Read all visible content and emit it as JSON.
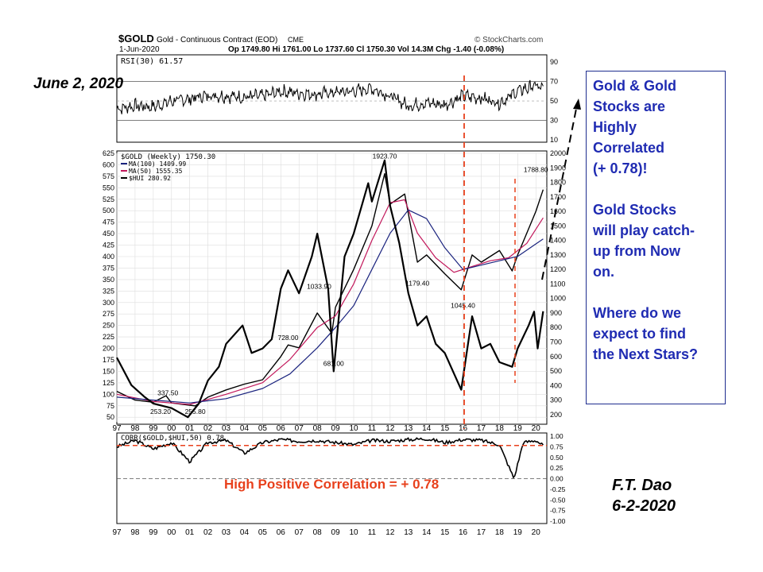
{
  "header": {
    "symbol": "$GOLD",
    "name": "Gold - Continuous Contract (EOD)",
    "exchange": "CME",
    "source": "© StockCharts.com",
    "date": "1-Jun-2020",
    "quote": "Op 1749.80  Hi 1761.00  Lo 1737.60  Cl 1750.30  Vol 14.3M  Chg -1.40 (-0.08%)"
  },
  "annotations": {
    "date_left": "June 2, 2020",
    "author": "F.T. Dao",
    "author_date": "6-2-2020",
    "callout": [
      "Gold & Gold\nStocks are\nHighly\nCorrelated\n(+ 0.78)!",
      "Gold Stocks\nwill play catch-\nup from Now\non.",
      "Where do we\nexpect to find\nthe Next Stars?"
    ],
    "corr_caption": "High Positive Correlation = + 0.78"
  },
  "colors": {
    "gold_price": "#000000",
    "hui": "#000000",
    "ma100": "#1a237e",
    "ma50": "#c2185b",
    "highlight": "#e8401c",
    "callout_text": "#1f2bb2"
  },
  "chart_data": [
    {
      "type": "line",
      "panel": "RSI",
      "legend": "RSI(30) 61.57",
      "yticks": [
        10,
        30,
        50,
        70,
        90
      ],
      "ylim": [
        10,
        95
      ],
      "x": [
        1997,
        1998,
        1999,
        2000,
        2001,
        2002,
        2003,
        2004,
        2005,
        2006,
        2007,
        2008,
        2009,
        2010,
        2011,
        2012,
        2013,
        2014,
        2015,
        2016,
        2017,
        2018,
        2019,
        2020,
        2020.4
      ],
      "series": [
        {
          "values": [
            42,
            45,
            44,
            50,
            52,
            56,
            55,
            54,
            55,
            60,
            58,
            57,
            59,
            60,
            63,
            55,
            45,
            48,
            46,
            55,
            53,
            48,
            60,
            66,
            61.57
          ]
        }
      ]
    },
    {
      "type": "line",
      "panel": "price",
      "legend_gold": "$GOLD (Weekly) 1750.30",
      "legend_ma100": "MA(100) 1409.99",
      "legend_ma50": "MA(50) 1555.35",
      "legend_hui": "$HUI 280.92",
      "x_ticks": [
        "97",
        "98",
        "99",
        "00",
        "01",
        "02",
        "03",
        "04",
        "05",
        "06",
        "07",
        "08",
        "09",
        "10",
        "11",
        "12",
        "13",
        "14",
        "15",
        "16",
        "17",
        "18",
        "19",
        "20"
      ],
      "gold_yticks": [
        200,
        300,
        400,
        500,
        600,
        700,
        800,
        900,
        1000,
        1100,
        1200,
        1300,
        1400,
        1500,
        1600,
        1700,
        1800,
        1900,
        2000
      ],
      "hui_yticks": [
        50,
        75,
        100,
        125,
        150,
        175,
        200,
        225,
        250,
        275,
        300,
        325,
        350,
        375,
        400,
        425,
        450,
        475,
        500,
        525,
        550,
        575,
        600,
        625
      ],
      "gold_ylim": [
        150,
        2000
      ],
      "hui_ylim": [
        40,
        625
      ],
      "labels": [
        {
          "text": "337.50",
          "x": 1999.8,
          "hui": 98
        },
        {
          "text": "253.20",
          "x": 1999.4,
          "hui": 57
        },
        {
          "text": "255.80",
          "x": 2001.3,
          "hui": 57
        },
        {
          "text": "728.00",
          "x": 2006.4,
          "hui": 218
        },
        {
          "text": "681.00",
          "x": 2008.9,
          "hui": 162
        },
        {
          "text": "1033.90",
          "x": 2008.1,
          "hui": 330
        },
        {
          "text": "1923.70",
          "x": 2011.7,
          "hui": 614
        },
        {
          "text": "1179.40",
          "x": 2013.5,
          "hui": 337
        },
        {
          "text": "1045.40",
          "x": 2016.0,
          "hui": 288
        },
        {
          "text": "1788.80",
          "x": 2020.0,
          "hui": 584
        }
      ],
      "series": [
        {
          "name": "$GOLD",
          "color": "#000000",
          "x": [
            1997,
            1998,
            1999,
            1999.7,
            2000,
            2001,
            2001.3,
            2002,
            2003,
            2004,
            2005,
            2006,
            2006.4,
            2007,
            2008,
            2008.8,
            2009,
            2010,
            2011,
            2011.7,
            2012,
            2012.8,
            2013.5,
            2014,
            2015,
            2015.9,
            2016.5,
            2017,
            2018,
            2018.7,
            2019,
            2019.5,
            2020,
            2020.4
          ],
          "values": [
            360,
            300,
            285,
            330,
            280,
            265,
            260,
            320,
            370,
            410,
            440,
            600,
            680,
            660,
            900,
            760,
            940,
            1200,
            1500,
            1860,
            1650,
            1720,
            1250,
            1300,
            1170,
            1060,
            1300,
            1250,
            1330,
            1190,
            1300,
            1450,
            1600,
            1750
          ]
        },
        {
          "name": "MA(50)",
          "color": "#c2185b",
          "x": [
            1997,
            1999,
            2001,
            2003,
            2005,
            2006.5,
            2008,
            2009,
            2010,
            2011,
            2012,
            2012.8,
            2013.5,
            2014.5,
            2015.5,
            2016.5,
            2017.5,
            2018.5,
            2019.5,
            2020.4
          ],
          "values": [
            340,
            290,
            270,
            340,
            420,
            580,
            800,
            880,
            1100,
            1400,
            1660,
            1680,
            1450,
            1280,
            1180,
            1220,
            1260,
            1280,
            1380,
            1555.35
          ]
        },
        {
          "name": "MA(100)",
          "color": "#1a237e",
          "x": [
            1997,
            1999,
            2001,
            2003,
            2005,
            2006.5,
            2008,
            2009,
            2010,
            2011,
            2012,
            2013,
            2014,
            2015,
            2016,
            2017,
            2018,
            2019,
            2020.4
          ],
          "values": [
            320,
            300,
            280,
            310,
            380,
            480,
            660,
            800,
            950,
            1200,
            1450,
            1610,
            1550,
            1350,
            1200,
            1230,
            1260,
            1290,
            1409.99
          ]
        },
        {
          "name": "$HUI",
          "color": "#000000",
          "x": [
            1997,
            1997.8,
            1998.5,
            1999,
            2000,
            2000.9,
            2001.5,
            2002,
            2002.6,
            2003,
            2003.9,
            2004.4,
            2005,
            2005.5,
            2006,
            2006.4,
            2007,
            2007.7,
            2008,
            2008.6,
            2008.9,
            2009.5,
            2010,
            2010.8,
            2011,
            2011.7,
            2012,
            2012.5,
            2013,
            2013.5,
            2014,
            2014.5,
            2015,
            2015.9,
            2016.5,
            2017,
            2017.5,
            2018,
            2018.7,
            2019,
            2019.6,
            2019.9,
            2020.1,
            2020.4
          ],
          "values": [
            180,
            120,
            95,
            80,
            70,
            50,
            80,
            130,
            160,
            210,
            250,
            190,
            200,
            220,
            330,
            370,
            320,
            400,
            450,
            330,
            150,
            400,
            450,
            560,
            520,
            610,
            510,
            430,
            320,
            250,
            270,
            210,
            190,
            110,
            270,
            200,
            210,
            170,
            160,
            200,
            250,
            280,
            200,
            280.92
          ]
        }
      ]
    },
    {
      "type": "line",
      "panel": "correlation",
      "legend": "CORR($GOLD,$HUI,50) 0.78",
      "yticks": [
        -1.0,
        -0.75,
        -0.5,
        -0.25,
        0.0,
        0.25,
        0.5,
        0.75,
        1.0
      ],
      "ylim": [
        -1.0,
        1.0
      ],
      "reference_line": 0.78,
      "x": [
        1997,
        1998,
        1999,
        2000,
        2001,
        2002,
        2003,
        2004,
        2005,
        2006,
        2007,
        2008,
        2009,
        2010,
        2011,
        2012,
        2013,
        2014,
        2015,
        2016,
        2017,
        2018,
        2018.8,
        2019.3,
        2020,
        2020.4
      ],
      "series": [
        {
          "values": [
            0.75,
            0.9,
            0.7,
            0.85,
            0.4,
            0.85,
            0.9,
            0.6,
            0.85,
            0.92,
            0.88,
            0.9,
            0.85,
            0.8,
            0.9,
            0.88,
            0.92,
            0.94,
            0.85,
            0.92,
            0.9,
            0.8,
            0.0,
            0.85,
            0.9,
            0.78
          ]
        }
      ]
    }
  ]
}
